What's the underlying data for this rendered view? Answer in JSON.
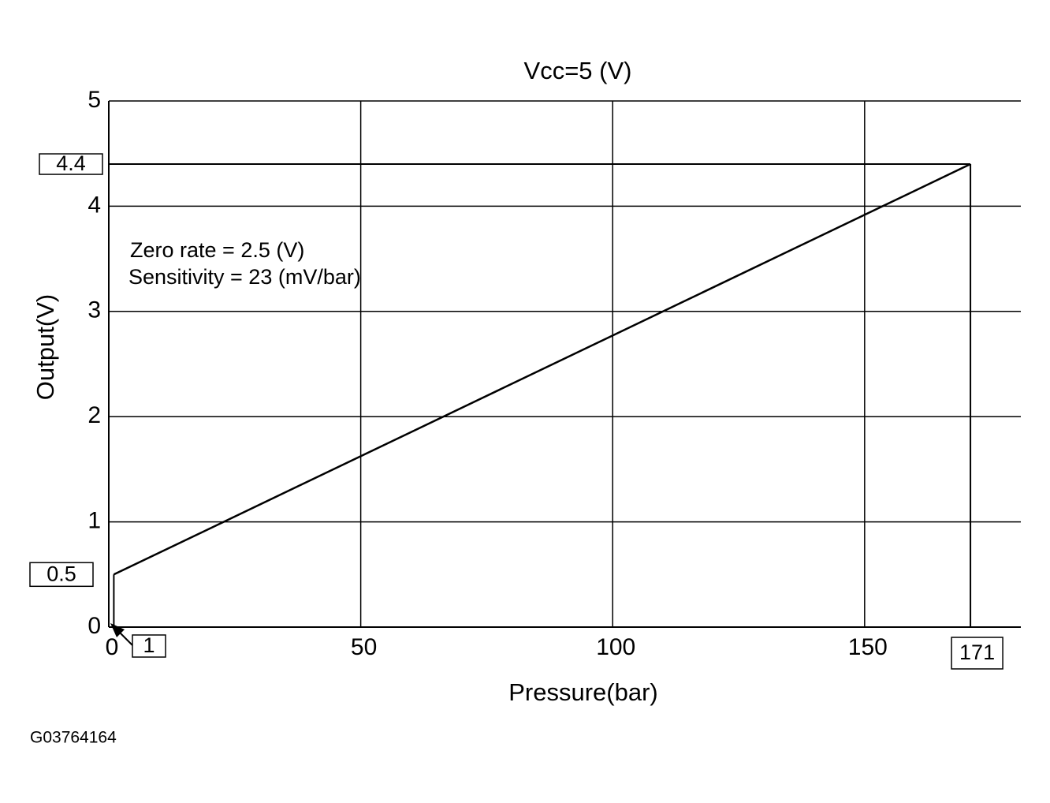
{
  "chart_data": {
    "type": "line",
    "title": "Vcc=5 (V)",
    "x_label": "Pressure(bar)",
    "y_label": "Output(V)",
    "x": [
      1,
      171
    ],
    "values": [
      0.5,
      4.4
    ],
    "color": "#000000",
    "xlim": [
      0,
      181
    ],
    "xticks": [
      0,
      50,
      100,
      150
    ],
    "ylim": [
      0,
      5
    ],
    "yticks": [
      0,
      1,
      2,
      3,
      4,
      5
    ],
    "grid": true,
    "annotations": [
      "Zero  rate = 2.5 (V)",
      "Sensitivity = 23 (mV/bar)"
    ],
    "footer": "G03764164"
  }
}
